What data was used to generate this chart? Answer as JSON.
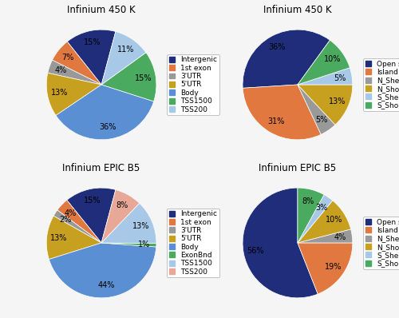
{
  "charts": [
    {
      "title": "Infinium 450 K",
      "labels": [
        "Intergenic",
        "1st exon",
        "3'UTR",
        "5'UTR",
        "Body",
        "TSS1500",
        "TSS200"
      ],
      "values": [
        15,
        7,
        4,
        13,
        36,
        15,
        11
      ],
      "colors": [
        "#1f2d7a",
        "#e07840",
        "#999999",
        "#c8a020",
        "#5b8fd4",
        "#4aaa60",
        "#a8c8e8"
      ],
      "startangle": 75,
      "legend_labels": [
        "Intergenic",
        "1st exon",
        "3'UTR",
        "5'UTR",
        "Body",
        "TSS1500",
        "TSS200"
      ]
    },
    {
      "title": "Infinium 450 K",
      "labels": [
        "Open sea",
        "Island",
        "N_Shelf",
        "N_Shore",
        "S_Shelf",
        "S_Shore"
      ],
      "values": [
        36,
        31,
        5,
        13,
        5,
        10
      ],
      "colors": [
        "#1f2d7a",
        "#e07840",
        "#999999",
        "#c8a020",
        "#a8c8e8",
        "#4aaa60"
      ],
      "startangle": 54,
      "legend_labels": [
        "Open sea",
        "Island",
        "N_Shelf",
        "N_Shore",
        "S_Shelf",
        "S_Shore"
      ]
    },
    {
      "title": "Infinium EPIC B5",
      "labels": [
        "Intergenic",
        "1st exon",
        "3'UTR",
        "5'UTR",
        "Body",
        "ExonBnd",
        "TSS1500",
        "TSS200"
      ],
      "values": [
        15,
        4,
        2,
        13,
        44,
        1,
        13,
        8
      ],
      "colors": [
        "#1f2d7a",
        "#e07840",
        "#999999",
        "#c8a020",
        "#5b8fd4",
        "#4aaa60",
        "#a8c8e8",
        "#e8a898"
      ],
      "startangle": 75,
      "legend_labels": [
        "Intergenic",
        "1st exon",
        "3'UTR",
        "5'UTR",
        "Body",
        "ExonBnd",
        "TSS1500",
        "TSS200"
      ]
    },
    {
      "title": "Infinium EPIC B5",
      "labels": [
        "Open sea",
        "Island",
        "N_Shelf",
        "N_Shore",
        "S_Shelf",
        "S_Shore"
      ],
      "values": [
        56,
        19,
        4,
        10,
        3,
        8
      ],
      "colors": [
        "#1f2d7a",
        "#e07840",
        "#999999",
        "#c8a020",
        "#a8c8e8",
        "#4aaa60"
      ],
      "startangle": 90,
      "legend_labels": [
        "Open sea",
        "Island",
        "N_Shelf",
        "N_Shore",
        "S_Shelf",
        "S_Shore"
      ]
    }
  ],
  "background_color": "#f5f5f5",
  "title_fontsize": 8.5,
  "label_fontsize": 7,
  "legend_fontsize": 6.5
}
